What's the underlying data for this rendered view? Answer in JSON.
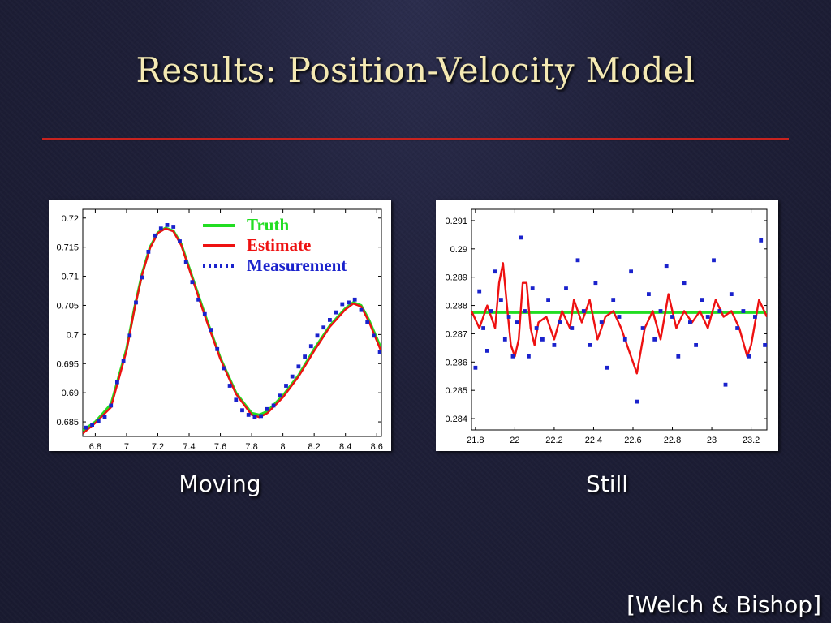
{
  "slide": {
    "title": "Results: Position-Velocity Model",
    "citation": "[Welch & Bishop]",
    "captions": {
      "moving": "Moving",
      "still": "Still"
    }
  },
  "colors": {
    "title": "#f4e9b3",
    "rule": "#c8231f",
    "truth": "#22dd22",
    "estimate": "#ee1111",
    "measurement": "#1a22cc"
  },
  "chart_data": [
    {
      "type": "line",
      "title": "",
      "xlabel": "",
      "ylabel": "",
      "xlim": [
        6.72,
        8.63
      ],
      "ylim": [
        0.6825,
        0.7215
      ],
      "x_ticks": [
        "6.8",
        "7",
        "7.2",
        "7.4",
        "7.6",
        "7.8",
        "8",
        "8.2",
        "8.4",
        "8.6"
      ],
      "y_ticks": [
        "0.685",
        "0.69",
        "0.695",
        "0.7",
        "0.705",
        "0.71",
        "0.715",
        "0.72"
      ],
      "legend": "top-right",
      "grid": false,
      "series": [
        {
          "name": "Truth",
          "style": "line",
          "x": [
            6.72,
            6.8,
            6.9,
            7.0,
            7.05,
            7.1,
            7.15,
            7.2,
            7.25,
            7.3,
            7.35,
            7.4,
            7.5,
            7.6,
            7.7,
            7.8,
            7.85,
            7.9,
            8.0,
            8.1,
            8.2,
            8.3,
            8.4,
            8.45,
            8.5,
            8.55,
            8.63
          ],
          "y": [
            0.6835,
            0.685,
            0.688,
            0.6975,
            0.7045,
            0.7105,
            0.715,
            0.7175,
            0.7183,
            0.7178,
            0.7155,
            0.7115,
            0.7035,
            0.696,
            0.69,
            0.6865,
            0.6862,
            0.6868,
            0.6895,
            0.693,
            0.6975,
            0.7015,
            0.7045,
            0.7055,
            0.705,
            0.7025,
            0.6975
          ]
        },
        {
          "name": "Estimate",
          "style": "line",
          "x": [
            6.72,
            6.8,
            6.9,
            7.0,
            7.05,
            7.1,
            7.15,
            7.2,
            7.25,
            7.3,
            7.35,
            7.4,
            7.5,
            7.6,
            7.7,
            7.8,
            7.85,
            7.9,
            8.0,
            8.1,
            8.2,
            8.3,
            8.4,
            8.45,
            8.5,
            8.55,
            8.63
          ],
          "y": [
            0.683,
            0.6848,
            0.6875,
            0.6972,
            0.7043,
            0.7103,
            0.7148,
            0.7174,
            0.7182,
            0.7177,
            0.7153,
            0.7113,
            0.7032,
            0.6958,
            0.6898,
            0.6862,
            0.6858,
            0.6865,
            0.6892,
            0.6928,
            0.6972,
            0.7013,
            0.7043,
            0.7053,
            0.7048,
            0.7022,
            0.697
          ]
        },
        {
          "name": "Measurement",
          "style": "dotted",
          "x": [
            6.74,
            6.78,
            6.82,
            6.86,
            6.9,
            6.94,
            6.98,
            7.02,
            7.06,
            7.1,
            7.14,
            7.18,
            7.22,
            7.26,
            7.3,
            7.34,
            7.38,
            7.42,
            7.46,
            7.5,
            7.54,
            7.58,
            7.62,
            7.66,
            7.7,
            7.74,
            7.78,
            7.82,
            7.86,
            7.9,
            7.94,
            7.98,
            8.02,
            8.06,
            8.1,
            8.14,
            8.18,
            8.22,
            8.26,
            8.3,
            8.34,
            8.38,
            8.42,
            8.46,
            8.5,
            8.54,
            8.58,
            8.62
          ],
          "y": [
            0.684,
            0.6845,
            0.6852,
            0.6858,
            0.6878,
            0.6918,
            0.6955,
            0.6998,
            0.7055,
            0.7098,
            0.7142,
            0.717,
            0.7182,
            0.7188,
            0.7185,
            0.716,
            0.7125,
            0.709,
            0.706,
            0.7035,
            0.7008,
            0.6975,
            0.6942,
            0.6912,
            0.6888,
            0.687,
            0.6862,
            0.6858,
            0.686,
            0.6872,
            0.6878,
            0.6895,
            0.6912,
            0.6928,
            0.6945,
            0.6962,
            0.698,
            0.6998,
            0.7012,
            0.7025,
            0.7038,
            0.7052,
            0.7055,
            0.706,
            0.7042,
            0.7022,
            0.6998,
            0.697
          ]
        }
      ]
    },
    {
      "type": "line",
      "title": "",
      "xlabel": "",
      "ylabel": "",
      "xlim": [
        21.78,
        23.28
      ],
      "ylim": [
        0.2836,
        0.2914
      ],
      "x_ticks": [
        "21.8",
        "22",
        "22.2",
        "22.4",
        "22.6",
        "22.8",
        "23",
        "23.2"
      ],
      "y_ticks": [
        "0.284",
        "0.285",
        "0.286",
        "0.287",
        "0.288",
        "0.289",
        "0.29",
        "0.291"
      ],
      "grid": false,
      "series": [
        {
          "name": "Truth",
          "style": "line",
          "x": [
            21.78,
            23.28
          ],
          "y": [
            0.28775,
            0.28775
          ]
        },
        {
          "name": "Estimate",
          "style": "line",
          "x": [
            21.78,
            21.82,
            21.86,
            21.9,
            21.92,
            21.94,
            21.96,
            21.98,
            22.0,
            22.02,
            22.04,
            22.06,
            22.08,
            22.1,
            22.12,
            22.16,
            22.2,
            22.24,
            22.28,
            22.3,
            22.34,
            22.38,
            22.42,
            22.46,
            22.5,
            22.54,
            22.58,
            22.62,
            22.66,
            22.7,
            22.74,
            22.78,
            22.82,
            22.86,
            22.9,
            22.94,
            22.98,
            23.02,
            23.06,
            23.1,
            23.14,
            23.18,
            23.2,
            23.24,
            23.28
          ],
          "y": [
            0.2878,
            0.2872,
            0.288,
            0.2872,
            0.2888,
            0.2895,
            0.288,
            0.2866,
            0.2862,
            0.2868,
            0.2888,
            0.2888,
            0.2872,
            0.2866,
            0.2874,
            0.2876,
            0.2868,
            0.2878,
            0.2872,
            0.2882,
            0.2874,
            0.2882,
            0.2868,
            0.2876,
            0.2878,
            0.2872,
            0.2864,
            0.2856,
            0.2872,
            0.2878,
            0.2868,
            0.2884,
            0.2872,
            0.2878,
            0.2874,
            0.2878,
            0.2872,
            0.2882,
            0.2876,
            0.2878,
            0.2872,
            0.2862,
            0.2866,
            0.2882,
            0.2876
          ]
        },
        {
          "name": "Measurement",
          "style": "scatter",
          "x": [
            21.8,
            21.82,
            21.84,
            21.86,
            21.88,
            21.9,
            21.93,
            21.95,
            21.97,
            21.99,
            22.01,
            22.03,
            22.05,
            22.07,
            22.09,
            22.11,
            22.14,
            22.17,
            22.2,
            22.23,
            22.26,
            22.29,
            22.32,
            22.35,
            22.38,
            22.41,
            22.44,
            22.47,
            22.5,
            22.53,
            22.56,
            22.59,
            22.62,
            22.65,
            22.68,
            22.71,
            22.74,
            22.77,
            22.8,
            22.83,
            22.86,
            22.89,
            22.92,
            22.95,
            22.98,
            23.01,
            23.04,
            23.07,
            23.1,
            23.13,
            23.16,
            23.19,
            23.22,
            23.25,
            23.27
          ],
          "y": [
            0.2858,
            0.2885,
            0.2872,
            0.2864,
            0.2878,
            0.2892,
            0.2882,
            0.2868,
            0.2876,
            0.2862,
            0.2874,
            0.2904,
            0.2878,
            0.2862,
            0.2886,
            0.2872,
            0.2868,
            0.2882,
            0.2866,
            0.2874,
            0.2886,
            0.2872,
            0.2896,
            0.2878,
            0.2866,
            0.2888,
            0.2874,
            0.2858,
            0.2882,
            0.2876,
            0.2868,
            0.2892,
            0.2846,
            0.2872,
            0.2884,
            0.2868,
            0.2878,
            0.2894,
            0.2876,
            0.2862,
            0.2888,
            0.2874,
            0.2866,
            0.2882,
            0.2876,
            0.2896,
            0.2878,
            0.2852,
            0.2884,
            0.2872,
            0.2878,
            0.2862,
            0.2876,
            0.2903,
            0.2866
          ]
        }
      ]
    }
  ]
}
